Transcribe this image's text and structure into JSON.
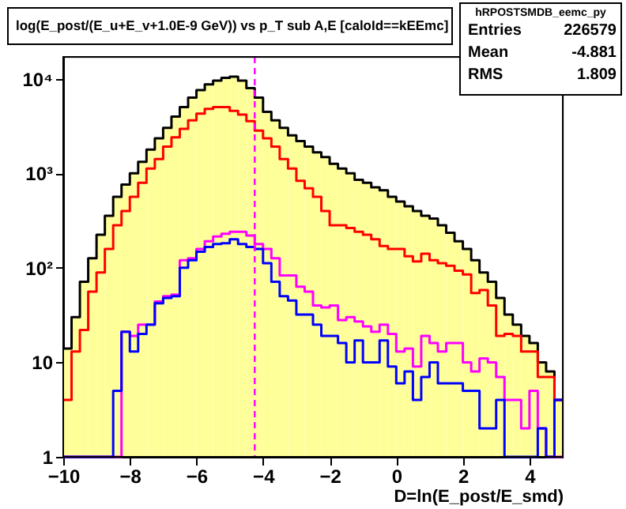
{
  "chart_data": {
    "type": "histogram",
    "title": "log(E_post/(E_u+E_v+1.0E-9 GeV)) vs p_T sub A,E [caloId==kEEmc]",
    "xlabel": "D=ln(E_post/E_smd)",
    "bins": [
      -10,
      -9.75,
      -9.5,
      -9.25,
      -9,
      -8.75,
      -8.5,
      -8.25,
      -8,
      -7.75,
      -7.5,
      -7.25,
      -7,
      -6.75,
      -6.5,
      -6.25,
      -6,
      -5.75,
      -5.5,
      -5.25,
      -5,
      -4.75,
      -4.5,
      -4.25,
      -4,
      -3.75,
      -3.5,
      -3.25,
      -3,
      -2.75,
      -2.5,
      -2.25,
      -2,
      -1.75,
      -1.5,
      -1.25,
      -1,
      -0.75,
      -0.5,
      -0.25,
      0,
      0.25,
      0.5,
      0.75,
      1,
      1.25,
      1.5,
      1.75,
      2,
      2.25,
      2.5,
      2.75,
      3,
      3.25,
      3.5,
      3.75,
      4,
      4.25,
      4.5,
      4.75,
      5
    ],
    "series": [
      {
        "type": "histogram",
        "color": "#ffff99",
        "values": [
          14,
          30,
          71,
          126,
          224,
          355,
          562,
          760,
          1000,
          1320,
          1780,
          2340,
          3020,
          3980,
          5010,
          6310,
          7590,
          8710,
          9550,
          10200,
          10500,
          9550,
          7940,
          6310,
          4470,
          3630,
          3020,
          2510,
          2190,
          1910,
          1660,
          1480,
          1260,
          1120,
          1000,
          850,
          794,
          708,
          661,
          562,
          501,
          447,
          398,
          355,
          331,
          282,
          234,
          191,
          158,
          120,
          89,
          71,
          48,
          32,
          25,
          19,
          16,
          10,
          8,
          4
        ]
      },
      {
        "color": "#000000",
        "values": [
          14,
          30,
          71,
          126,
          224,
          355,
          562,
          760,
          1000,
          1320,
          1780,
          2340,
          3020,
          3980,
          5010,
          6310,
          7590,
          8710,
          9550,
          10200,
          10500,
          9550,
          7940,
          6310,
          4470,
          3630,
          3020,
          2510,
          2190,
          1910,
          1660,
          1480,
          1260,
          1120,
          1000,
          850,
          794,
          708,
          661,
          562,
          501,
          447,
          398,
          355,
          331,
          282,
          234,
          191,
          158,
          120,
          89,
          71,
          48,
          32,
          25,
          19,
          16,
          10,
          8,
          4
        ]
      },
      {
        "color": "#ff0000",
        "values": [
          4,
          13,
          22,
          56,
          89,
          158,
          282,
          398,
          562,
          794,
          1120,
          1410,
          1910,
          2400,
          2950,
          3630,
          4270,
          4790,
          5010,
          5010,
          4570,
          4170,
          3550,
          2820,
          2340,
          1910,
          1410,
          1120,
          832,
          692,
          562,
          398,
          282,
          282,
          263,
          240,
          224,
          200,
          170,
          158,
          158,
          132,
          117,
          141,
          120,
          112,
          105,
          93,
          85,
          54,
          58,
          40,
          19,
          20,
          19,
          13,
          13,
          7,
          7,
          4
        ]
      },
      {
        "color": "#ff00ff",
        "values": [
          1,
          1,
          1,
          1,
          1,
          1,
          1,
          21,
          19,
          25,
          25,
          44,
          50,
          52,
          120,
          126,
          158,
          191,
          214,
          229,
          240,
          240,
          219,
          178,
          158,
          126,
          83,
          83,
          63,
          56,
          40,
          38,
          40,
          28,
          30,
          27,
          24,
          21,
          25,
          20,
          13,
          14,
          9,
          19,
          16,
          13,
          16,
          16,
          10,
          8,
          11,
          10,
          7,
          4,
          4,
          2,
          5,
          2,
          1,
          1
        ]
      },
      {
        "color": "#0000ff",
        "values": [
          1,
          1,
          1,
          1,
          1,
          1,
          5,
          21,
          13,
          20,
          25,
          42,
          48,
          50,
          100,
          120,
          148,
          166,
          178,
          182,
          200,
          178,
          166,
          158,
          112,
          71,
          50,
          45,
          32,
          32,
          25,
          19,
          19,
          16,
          10,
          17,
          10,
          10,
          17,
          9,
          6,
          8,
          4,
          7,
          10,
          6,
          6,
          6,
          5,
          5,
          2,
          2,
          4,
          1,
          1,
          1,
          1,
          2,
          1,
          4
        ]
      }
    ],
    "xlim": [
      -10,
      5
    ],
    "xticks": [
      -10,
      -8,
      -6,
      -4,
      -2,
      0,
      2,
      4
    ],
    "log": true,
    "ylim": [
      1,
      17000
    ],
    "yticks": [
      1,
      10,
      {
        "value": 100,
        "label": "10²"
      },
      {
        "value": 1000,
        "label": "10³"
      },
      {
        "value": 10000,
        "label": "10⁴"
      }
    ],
    "ref_lines": [
      {
        "axis": "x",
        "value": -4.25,
        "color": "#ff00ff",
        "line_style": "dashed"
      }
    ],
    "annotations": [
      "hRPOSTSMDB_eemc_py",
      "Entries",
      "226579",
      "Mean",
      "-4.881",
      "RMS",
      "1.809"
    ],
    "grid": false
  }
}
